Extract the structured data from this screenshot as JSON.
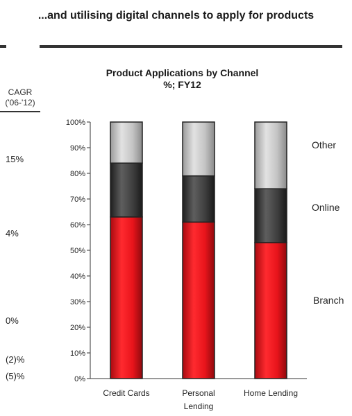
{
  "headline": "...and utilising digital channels to apply for products",
  "cagr": {
    "header_line1": "CAGR",
    "header_line2": "('06-'12)",
    "values": [
      "15%",
      "4%",
      "0%",
      "(2)%",
      "(5)%"
    ]
  },
  "chart_data": {
    "type": "bar",
    "stacked": true,
    "title": "Product Applications by Channel",
    "subtitle": "%; FY12",
    "categories": [
      [
        "Credit Cards"
      ],
      [
        "Personal",
        "Lending"
      ],
      [
        "Home Lending"
      ]
    ],
    "series": [
      {
        "name": "Branch",
        "values": [
          63,
          61,
          53
        ],
        "color": "#e8141b"
      },
      {
        "name": "Online",
        "values": [
          21,
          18,
          21
        ],
        "color": "#3f3f3f"
      },
      {
        "name": "Other",
        "values": [
          16,
          21,
          26
        ],
        "color": "#c4c4c4"
      }
    ],
    "y_ticks": [
      "0%",
      "10%",
      "20%",
      "30%",
      "40%",
      "50%",
      "60%",
      "70%",
      "80%",
      "90%",
      "100%"
    ],
    "ylim": [
      0,
      100
    ],
    "legend": "right, beside last bar"
  }
}
